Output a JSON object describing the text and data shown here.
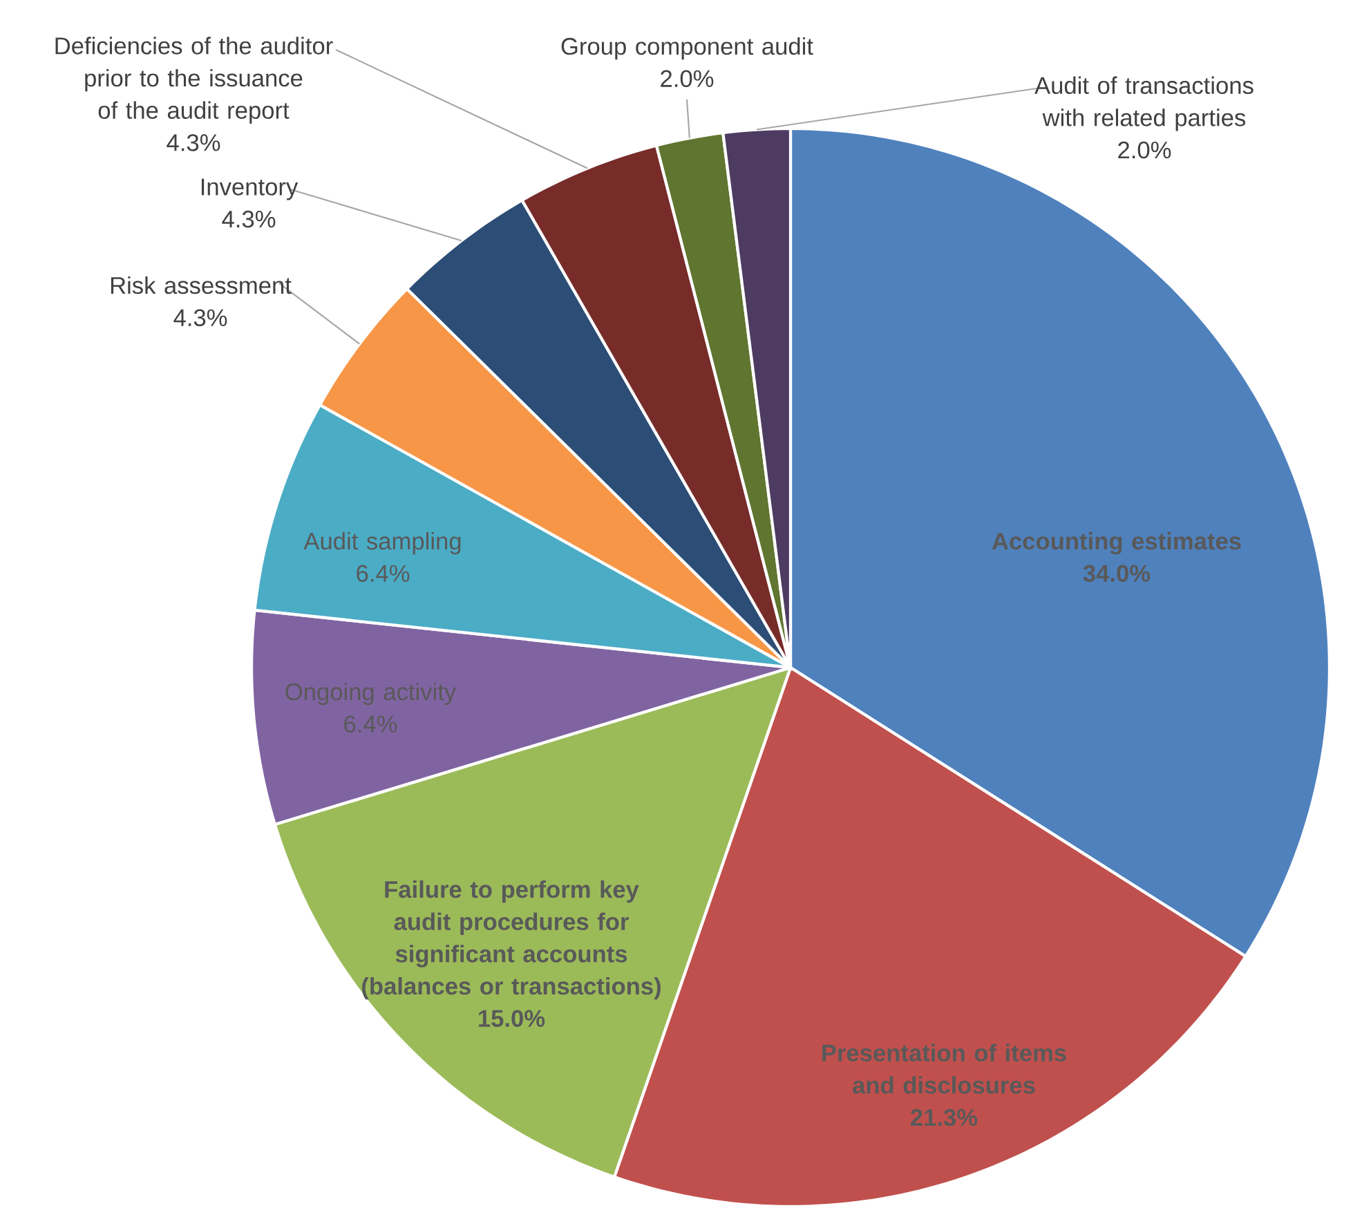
{
  "chart_data": {
    "type": "pie",
    "categories": [
      "Accounting estimates",
      "Presentation of items and disclosures",
      "Failure to perform key audit procedures for significant accounts (balances or transactions)",
      "Ongoing activity",
      "Audit sampling",
      "Risk assessment",
      "Inventory",
      "Deficiencies of the auditor prior to the issuance of the audit report",
      "Group component audit",
      "Audit of transactions with related parties"
    ],
    "values": [
      34.0,
      21.3,
      15.0,
      6.4,
      6.4,
      4.3,
      4.3,
      4.3,
      2.0,
      2.0
    ],
    "value_labels": [
      "34.0%",
      "21.3%",
      "15.0%",
      "6.4%",
      "6.4%",
      "4.3%",
      "4.3%",
      "4.3%",
      "2.0%",
      "2.0%"
    ],
    "colors": [
      "#4f81bd",
      "#c0504d",
      "#9bbb59",
      "#8064a2",
      "#4bacc6",
      "#f79646",
      "#2c4d75",
      "#772c2a",
      "#5f7530",
      "#4d3b62"
    ]
  }
}
